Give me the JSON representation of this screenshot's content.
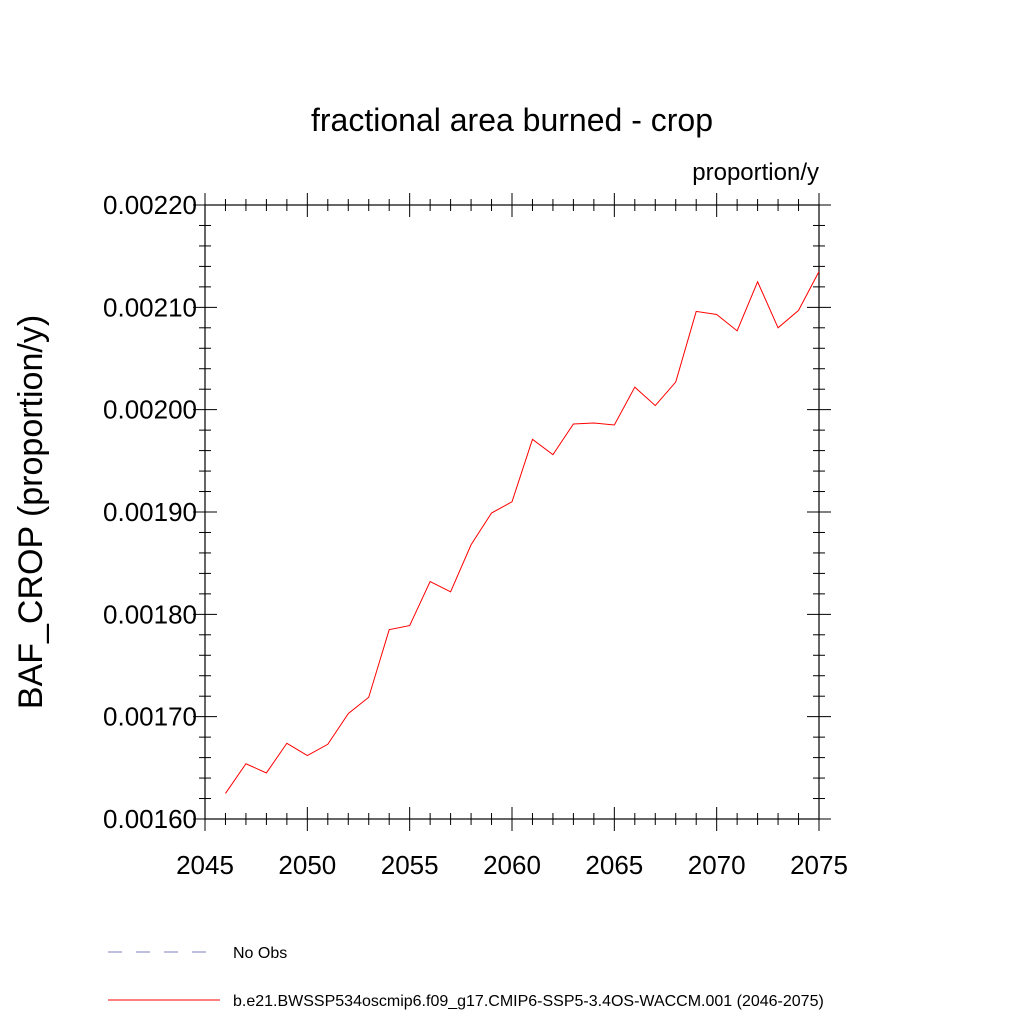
{
  "chart_data": {
    "type": "line",
    "title": "fractional area burned - crop",
    "units": "proportion/y",
    "xlabel": "",
    "ylabel": "BAF_CROP  (proportion/y)",
    "xlim": [
      2045,
      2075
    ],
    "ylim": [
      0.0016,
      0.0022
    ],
    "x_ticks": [
      2045,
      2050,
      2055,
      2060,
      2065,
      2070,
      2075
    ],
    "x_tick_labels": [
      "2045",
      "2050",
      "2055",
      "2060",
      "2065",
      "2070",
      "2075"
    ],
    "y_ticks": [
      0.0016,
      0.0017,
      0.0018,
      0.0019,
      0.002,
      0.0021,
      0.0022
    ],
    "y_tick_labels": [
      "0.00160",
      "0.00170",
      "0.00180",
      "0.00190",
      "0.00200",
      "0.00210",
      "0.00220"
    ],
    "grid": false,
    "series": [
      {
        "name": "b.e21.BWSSP534oscmip6.f09_g17.CMIP6-SSP5-3.4OS-WACCM.001 (2046-2075)",
        "color": "#ff0000",
        "x": [
          2046,
          2047,
          2048,
          2049,
          2050,
          2051,
          2052,
          2053,
          2054,
          2055,
          2056,
          2057,
          2058,
          2059,
          2060,
          2061,
          2062,
          2063,
          2064,
          2065,
          2066,
          2067,
          2068,
          2069,
          2070,
          2071,
          2072,
          2073,
          2074,
          2075
        ],
        "values": [
          0.001625,
          0.001654,
          0.001645,
          0.001674,
          0.001662,
          0.001673,
          0.001703,
          0.001719,
          0.001785,
          0.001789,
          0.001832,
          0.001822,
          0.001868,
          0.001899,
          0.00191,
          0.001971,
          0.001956,
          0.001986,
          0.001987,
          0.001985,
          0.002022,
          0.002004,
          0.002027,
          0.002096,
          0.002093,
          0.002077,
          0.002125,
          0.00208,
          0.002097,
          0.002135
        ]
      }
    ],
    "legend": [
      {
        "label": "No Obs",
        "style": "dashed",
        "color": "#7f7fbf"
      },
      {
        "label": "b.e21.BWSSP534oscmip6.f09_g17.CMIP6-SSP5-3.4OS-WACCM.001 (2046-2075)",
        "style": "solid",
        "color": "#ff0000"
      }
    ],
    "legend_position": "bottom"
  }
}
